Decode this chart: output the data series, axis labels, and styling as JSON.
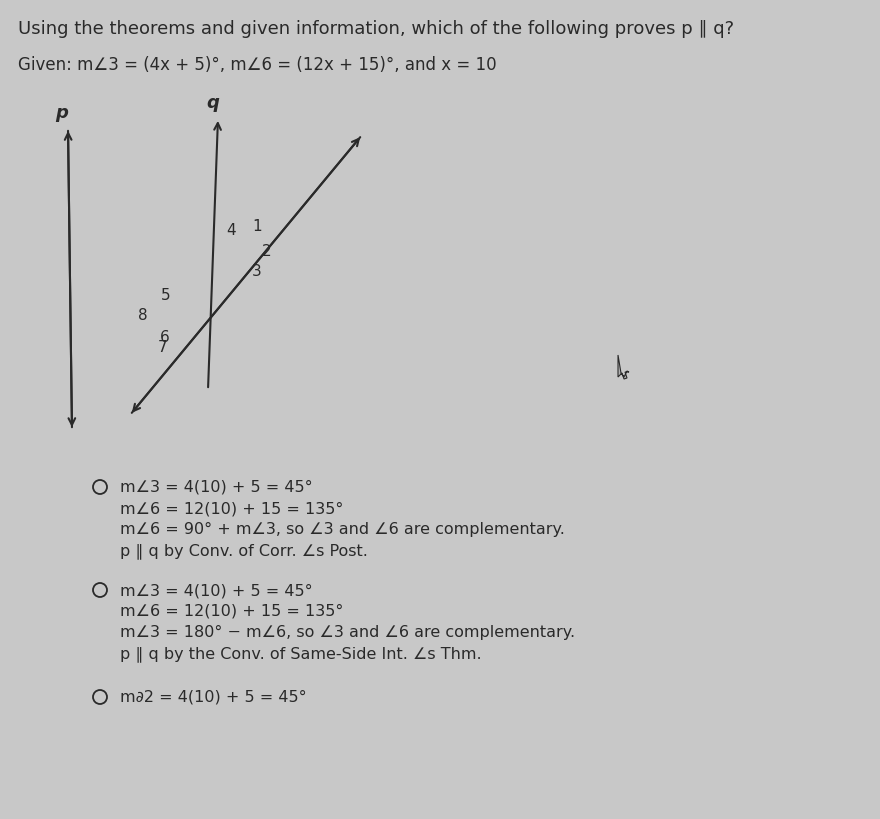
{
  "background_color": "#c8c8c8",
  "title_text": "Using the theorems and given information, which of the following proves p ∥ q?",
  "given_text": "Given: m∠3 = (4x + 5)°, m∠6 = (12x + 15)°, and x = 10",
  "option1": {
    "lines": [
      "m∠3 = 4(10) + 5 = 45°",
      "m∠6 = 12(10) + 15 = 135°",
      "m∠6 = 90° + m∠3, so ∠3 and ∠6 are complementary.",
      "p ∥ q by Conv. of Corr. ∠s Post."
    ]
  },
  "option2": {
    "lines": [
      "m∠3 = 4(10) + 5 = 45°",
      "m∠6 = 12(10) + 15 = 135°",
      "m∠3 = 180° − m∠6, so ∠3 and ∠6 are complementary.",
      "p ∥ q by the Conv. of Same-Side Int. ∠s Thm."
    ]
  },
  "option3_partial": "m∂2 = 4(10) + 5 = 45°",
  "text_color": "#2a2a2a",
  "font_size_title": 13,
  "font_size_given": 12,
  "font_size_option": 11.5
}
